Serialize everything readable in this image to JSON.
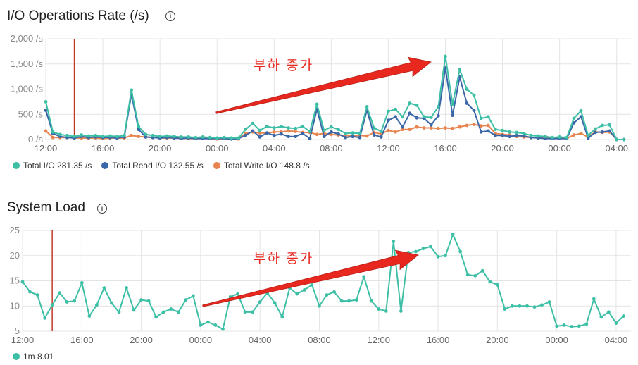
{
  "io_panel": {
    "title": "I/O Operations Rate (/s)",
    "info_icon": "info-icon",
    "annotation": "부하   증가",
    "legend": [
      {
        "label": "Total I/O",
        "value": "281.35 /s",
        "color": "#3dbfa6"
      },
      {
        "label": "Total Read I/O",
        "value": "132.55 /s",
        "color": "#3a67a8"
      },
      {
        "label": "Total Write I/O",
        "value": "148.8 /s",
        "color": "#e8844f"
      }
    ]
  },
  "load_panel": {
    "title": "System Load",
    "info_icon": "info-icon",
    "annotation": "부하   증가",
    "legend": [
      {
        "label": "1m",
        "value": "8.01",
        "color": "#3dbfa6"
      }
    ]
  },
  "chart_data": [
    {
      "type": "line",
      "title": "I/O Operations Rate (/s)",
      "x_labels": [
        "12:00",
        "16:00",
        "20:00",
        "00:00",
        "04:00",
        "08:00",
        "12:00",
        "16:00",
        "20:00",
        "00:00",
        "04:00"
      ],
      "y_ticks": [
        "0 /s",
        "500 /s",
        "1,000 /s",
        "1,500 /s",
        "2,000 /s"
      ],
      "ylim": [
        0,
        2000
      ],
      "x_range_hours": [
        0,
        41
      ],
      "marker_hour": 2,
      "grid": true,
      "legend_position": "bottom-left",
      "series": [
        {
          "name": "Total I/O",
          "color": "#3dbfa6",
          "x": [
            0,
            0.5,
            1,
            1.5,
            2,
            2.5,
            3,
            3.5,
            4,
            4.5,
            5,
            5.5,
            6,
            6.5,
            7,
            7.5,
            8,
            8.5,
            9,
            9.5,
            10,
            10.5,
            11,
            11.5,
            12,
            12.5,
            13,
            13.5,
            14,
            14.5,
            15,
            15.5,
            16,
            16.5,
            17,
            17.5,
            18,
            18.5,
            19,
            19.5,
            20,
            20.5,
            21,
            21.5,
            22,
            22.5,
            23,
            23.5,
            24,
            24.5,
            25,
            25.5,
            26,
            26.5,
            27,
            27.5,
            28,
            28.5,
            29,
            29.5,
            30,
            30.5,
            31,
            31.5,
            32,
            32.5,
            33,
            33.5,
            34,
            34.5,
            35,
            35.5,
            36,
            36.5,
            37,
            37.5,
            38,
            38.5,
            39,
            39.5,
            40,
            40.5,
            41
          ],
          "values": [
            750,
            150,
            100,
            80,
            60,
            90,
            70,
            80,
            60,
            70,
            60,
            80,
            980,
            260,
            100,
            80,
            60,
            70,
            60,
            50,
            50,
            40,
            50,
            40,
            30,
            40,
            30,
            30,
            200,
            320,
            180,
            260,
            230,
            260,
            230,
            220,
            260,
            160,
            700,
            180,
            250,
            200,
            120,
            130,
            120,
            650,
            230,
            160,
            560,
            600,
            450,
            720,
            680,
            450,
            440,
            650,
            1650,
            700,
            1390,
            1000,
            880,
            420,
            450,
            200,
            180,
            150,
            140,
            120,
            80,
            70,
            60,
            40,
            50,
            40,
            420,
            570,
            80,
            210,
            280,
            290,
            0,
            0,
            0
          ],
          "values_note": ""
        },
        {
          "name": "Total Read I/O",
          "color": "#3a67a8",
          "x": [
            0,
            0.5,
            1,
            1.5,
            2,
            2.5,
            3,
            3.5,
            4,
            4.5,
            5,
            5.5,
            6,
            6.5,
            7,
            7.5,
            8,
            8.5,
            9,
            9.5,
            10,
            10.5,
            11,
            11.5,
            12,
            12.5,
            13,
            13.5,
            14,
            14.5,
            15,
            15.5,
            16,
            16.5,
            17,
            17.5,
            18,
            18.5,
            19,
            19.5,
            20,
            20.5,
            21,
            21.5,
            22,
            22.5,
            23,
            23.5,
            24,
            24.5,
            25,
            25.5,
            26,
            26.5,
            27,
            27.5,
            28,
            28.5,
            29,
            29.5,
            30,
            30.5,
            31,
            31.5,
            32,
            32.5,
            33,
            33.5,
            34,
            34.5,
            35,
            35.5,
            36,
            36.5,
            37,
            37.5,
            38,
            38.5,
            39,
            39.5,
            40,
            40.5,
            41
          ],
          "values": [
            580,
            120,
            60,
            40,
            30,
            60,
            40,
            50,
            40,
            40,
            30,
            50,
            900,
            200,
            50,
            40,
            30,
            40,
            30,
            20,
            30,
            20,
            20,
            20,
            20,
            20,
            10,
            20,
            80,
            170,
            50,
            130,
            80,
            110,
            60,
            60,
            120,
            20,
            600,
            60,
            150,
            110,
            40,
            60,
            40,
            580,
            90,
            50,
            380,
            450,
            250,
            520,
            430,
            420,
            290,
            470,
            1420,
            480,
            1240,
            720,
            580,
            150,
            170,
            80,
            80,
            60,
            80,
            70,
            40,
            30,
            20,
            20,
            20,
            20,
            330,
            450,
            30,
            140,
            150,
            170,
            0,
            0,
            0
          ]
        },
        {
          "name": "Total Write I/O",
          "color": "#e8844f",
          "x": [
            0,
            0.5,
            1,
            1.5,
            2,
            2.5,
            3,
            3.5,
            4,
            4.5,
            5,
            5.5,
            6,
            6.5,
            7,
            7.5,
            8,
            8.5,
            9,
            9.5,
            10,
            10.5,
            11,
            11.5,
            12,
            12.5,
            13,
            13.5,
            14,
            14.5,
            15,
            15.5,
            16,
            16.5,
            17,
            17.5,
            18,
            18.5,
            19,
            19.5,
            20,
            20.5,
            21,
            21.5,
            22,
            22.5,
            23,
            23.5,
            24,
            24.5,
            25,
            25.5,
            26,
            26.5,
            27,
            27.5,
            28,
            28.5,
            29,
            29.5,
            30,
            30.5,
            31,
            31.5,
            32,
            32.5,
            33,
            33.5,
            34,
            34.5,
            35,
            35.5,
            36,
            36.5,
            37,
            37.5,
            38,
            38.5,
            39,
            39.5,
            40,
            40.5,
            41
          ],
          "values": [
            170,
            40,
            40,
            40,
            30,
            30,
            30,
            30,
            20,
            30,
            30,
            30,
            80,
            60,
            50,
            40,
            30,
            30,
            30,
            30,
            20,
            20,
            30,
            20,
            10,
            20,
            20,
            10,
            120,
            150,
            130,
            130,
            150,
            150,
            170,
            160,
            140,
            140,
            100,
            120,
            100,
            90,
            80,
            70,
            80,
            70,
            140,
            110,
            180,
            150,
            200,
            200,
            250,
            230,
            230,
            220,
            230,
            220,
            250,
            280,
            300,
            270,
            280,
            120,
            100,
            90,
            60,
            50,
            40,
            40,
            40,
            20,
            30,
            20,
            90,
            120,
            50,
            150,
            140,
            150,
            0,
            0,
            0
          ]
        }
      ]
    },
    {
      "type": "line",
      "title": "System Load",
      "x_labels": [
        "12:00",
        "16:00",
        "20:00",
        "00:00",
        "04:00",
        "08:00",
        "12:00",
        "16:00",
        "20:00",
        "00:00",
        "04:00"
      ],
      "y_ticks": [
        "5",
        "10",
        "15",
        "20",
        "25"
      ],
      "ylim": [
        5,
        25
      ],
      "x_range_hours": [
        0,
        41
      ],
      "marker_hour": 2,
      "grid": true,
      "legend_position": "bottom-left",
      "series": [
        {
          "name": "1m",
          "color": "#3dbfa6",
          "x": [
            0,
            0.5,
            1,
            1.5,
            2,
            2.5,
            3,
            3.5,
            4,
            4.5,
            5,
            5.5,
            6,
            6.5,
            7,
            7.5,
            8,
            8.5,
            9,
            9.5,
            10,
            10.5,
            11,
            11.5,
            12,
            12.5,
            13,
            13.5,
            14,
            14.5,
            15,
            15.5,
            16,
            16.5,
            17,
            17.5,
            18,
            18.5,
            19,
            19.5,
            20,
            20.5,
            21,
            21.5,
            22,
            22.5,
            23,
            23.5,
            24,
            24.5,
            25,
            25.5,
            26,
            26.5,
            27,
            27.5,
            28,
            28.5,
            29,
            29.5,
            30,
            30.5,
            31,
            31.5,
            32,
            32.5,
            33,
            33.5,
            34,
            34.5,
            35,
            35.5,
            36,
            36.5,
            37,
            37.5,
            38,
            38.5,
            39,
            39.5,
            40,
            40.5,
            41
          ],
          "values": [
            14.8,
            12.8,
            12.2,
            7.6,
            10.2,
            12.6,
            10.8,
            11,
            14.6,
            8,
            10.2,
            13.6,
            10.6,
            8.8,
            13.6,
            9.2,
            11.2,
            11,
            7.8,
            8.8,
            9.4,
            8.8,
            11.2,
            12,
            6.2,
            6.8,
            6.2,
            5.4,
            11.8,
            12.4,
            8.8,
            8.8,
            10.8,
            12.6,
            10.6,
            7.8,
            13.6,
            12.4,
            13.2,
            14.2,
            10,
            12.2,
            12.8,
            11,
            11,
            11.2,
            15.8,
            11,
            9.4,
            9,
            22.8,
            9,
            20.6,
            20.8,
            21.4,
            21.8,
            19.8,
            20,
            24.2,
            20.8,
            16.2,
            16,
            17,
            14.8,
            14.2,
            9.4,
            10,
            10,
            10,
            9.8,
            10.2,
            10.8,
            6,
            6.2,
            5.9,
            6,
            6.4,
            11.4,
            7.8,
            8.8,
            6.6,
            8,
            8
          ]
        }
      ]
    }
  ]
}
